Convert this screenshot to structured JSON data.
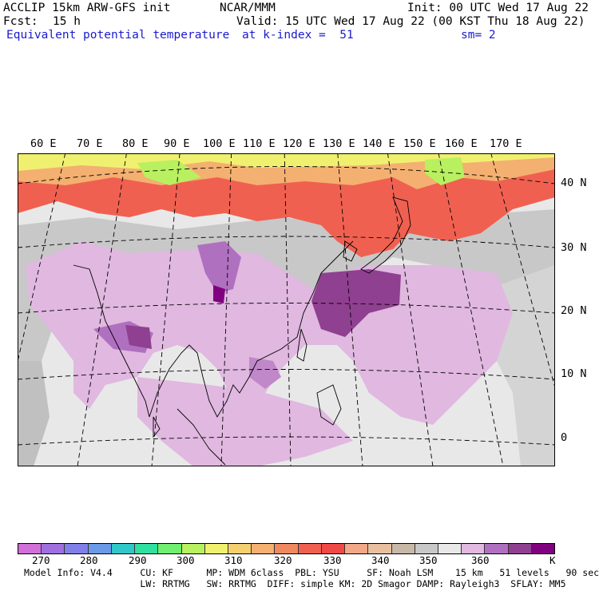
{
  "header": {
    "model_line": "ACCLIP 15km ARW-GFS init",
    "center": "NCAR/MMM",
    "init": "Init: 00 UTC Wed 17 Aug 22",
    "fcst_label": "Fcst:",
    "fcst_value": "15 h",
    "valid": "Valid: 15 UTC Wed 17 Aug 22 (00 KST Thu 18 Aug 22)",
    "field": "Equivalent potential temperature",
    "level": "at k-index =  51",
    "smoothing": "sm= 2"
  },
  "map": {
    "lon_labels": [
      "60 E",
      "70 E",
      "80 E",
      "90 E",
      "100 E",
      "110 E",
      "120 E",
      "130 E",
      "140 E",
      "150 E",
      "160 E",
      "170 E"
    ],
    "lat_labels": [
      "40 N",
      "30 N",
      "20 N",
      "10 N",
      "0"
    ]
  },
  "colorbar": {
    "colors": [
      "#d070d8",
      "#a070e0",
      "#8080e8",
      "#6a9ae8",
      "#30c8c8",
      "#30e0a0",
      "#70ee70",
      "#b8f060",
      "#f0f070",
      "#f4d070",
      "#f4b070",
      "#f08860",
      "#f06050",
      "#f04a48",
      "#f0a888",
      "#e8c0a0",
      "#c8b8a8",
      "#c8c8c8",
      "#e8e8e8",
      "#e0b8e0",
      "#b070c0",
      "#904090",
      "#800080"
    ],
    "labels": [
      "270",
      "280",
      "290",
      "300",
      "310",
      "320",
      "330",
      "340",
      "350",
      "360"
    ],
    "unit": "K"
  },
  "footer": {
    "line1": "Model Info: V4.4     CU: KF      MP: WDM 6class  PBL: YSU     SF: Noah LSM    15 km   51 levels   90 sec",
    "line2": "                     LW: RRTMG   SW: RRTMG  DIFF: simple KM: 2D Smagor DAMP: Rayleigh3  SFLAY: MM5"
  }
}
